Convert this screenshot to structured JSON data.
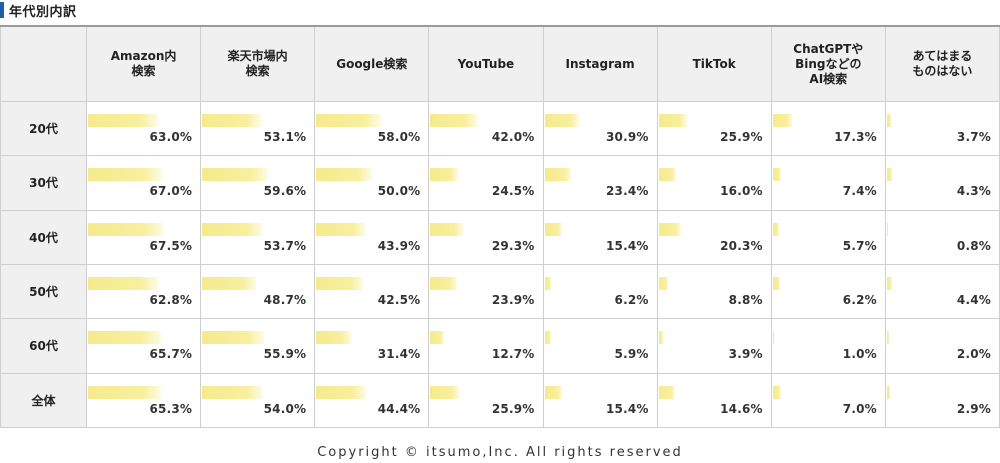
{
  "title": "年代別内訳",
  "copyright": "Copyright © itsumo,Inc. All rights reserved",
  "colors": {
    "bar": "#f5ea8c",
    "header_bg": "#f0f0f0",
    "title_accent": "#1f5fa8"
  },
  "chart_data": {
    "type": "table",
    "title": "年代別内訳",
    "columns": [
      "Amazon内\n検索",
      "楽天市場内\n検索",
      "Google検索",
      "YouTube",
      "Instagram",
      "TikTok",
      "ChatGPTや\nBingなどの\nAI検索",
      "あてはまる\nものはない"
    ],
    "rows": [
      "20代",
      "30代",
      "40代",
      "50代",
      "60代",
      "全体"
    ],
    "unit": "%",
    "values": [
      [
        63.0,
        53.1,
        58.0,
        42.0,
        30.9,
        25.9,
        17.3,
        3.7
      ],
      [
        67.0,
        59.6,
        50.0,
        24.5,
        23.4,
        16.0,
        7.4,
        4.3
      ],
      [
        67.5,
        53.7,
        43.9,
        29.3,
        15.4,
        20.3,
        5.7,
        0.8
      ],
      [
        62.8,
        48.7,
        42.5,
        23.9,
        6.2,
        8.8,
        6.2,
        4.4
      ],
      [
        65.7,
        55.9,
        31.4,
        12.7,
        5.9,
        3.9,
        1.0,
        2.0
      ],
      [
        65.3,
        54.0,
        44.4,
        25.9,
        15.4,
        14.6,
        7.0,
        2.9
      ]
    ],
    "labels": [
      [
        "63.0%",
        "53.1%",
        "58.0%",
        "42.0%",
        "30.9%",
        "25.9%",
        "17.3%",
        "3.7%"
      ],
      [
        "67.0%",
        "59.6%",
        "50.0%",
        "24.5%",
        "23.4%",
        "16.0%",
        "7.4%",
        "4.3%"
      ],
      [
        "67.5%",
        "53.7%",
        "43.9%",
        "29.3%",
        "15.4%",
        "20.3%",
        "5.7%",
        "0.8%"
      ],
      [
        "62.8%",
        "48.7%",
        "42.5%",
        "23.9%",
        "6.2%",
        "8.8%",
        "6.2%",
        "4.4%"
      ],
      [
        "65.7%",
        "55.9%",
        "31.4%",
        "12.7%",
        "5.9%",
        "3.9%",
        "1.0%",
        "2.0%"
      ],
      [
        "65.3%",
        "54.0%",
        "44.4%",
        "25.9%",
        "15.4%",
        "14.6%",
        "7.0%",
        "2.9%"
      ]
    ]
  }
}
